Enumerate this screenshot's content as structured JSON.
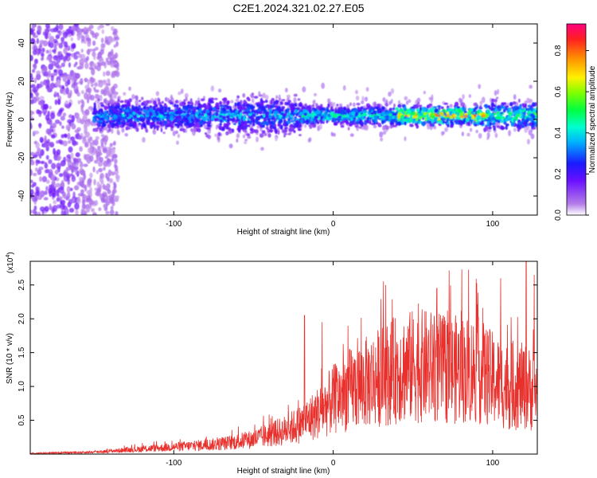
{
  "title": "C2E1.2024.321.02.27.E05",
  "colors": {
    "snr_line": "#e8302c",
    "axis": "#000000",
    "colormap": [
      "#ffffff",
      "#dcc8f5",
      "#a050f0",
      "#5a1ee6",
      "#1a1aff",
      "#00c8ff",
      "#00ffb4",
      "#32ff00",
      "#fff000",
      "#ff9600",
      "#ff0050"
    ]
  },
  "chart_data": [
    {
      "type": "heatmap",
      "title": "",
      "xlabel": "Height of straight line (km)",
      "ylabel": "Frequency (Hz)",
      "xlim": [
        -190,
        128
      ],
      "ylim": [
        -50,
        50
      ],
      "xticks": [
        -100,
        0,
        100
      ],
      "yticks": [
        -40,
        -20,
        0,
        20,
        40
      ],
      "colorbar": {
        "label": "Normalized spectral amplitude",
        "range": [
          0,
          0.93
        ],
        "ticks": [
          "0.0",
          "0.2",
          "0.4",
          "0.6",
          "0.8"
        ]
      },
      "description_band": {
        "center_freq_hz": 2,
        "noise_region_km": [
          -190,
          -135
        ],
        "band_start_km": -160,
        "band_end_km": 128
      }
    },
    {
      "type": "line",
      "title": "",
      "xlabel": "Height of straight line (km)",
      "ylabel": "SNR (10 * v/v)",
      "multiplier_label": "(x10",
      "multiplier_exp": "4",
      "xlim": [
        -190,
        128
      ],
      "ylim": [
        0,
        2.85
      ],
      "xticks": [
        -100,
        0,
        100
      ],
      "yticks": [
        "0.5",
        "1.0",
        "1.5",
        "2.0",
        "2.5"
      ],
      "series": [
        {
          "x": [
            -190,
            -170,
            -150,
            -130,
            -110,
            -90,
            -70,
            -50,
            -30,
            -20,
            -10,
            0,
            10,
            20,
            30,
            40,
            50,
            60,
            70,
            80,
            90,
            100,
            110,
            120,
            128
          ],
          "y": [
            0.01,
            0.02,
            0.03,
            0.06,
            0.09,
            0.12,
            0.15,
            0.22,
            0.35,
            0.45,
            0.6,
            0.8,
            0.95,
            1.05,
            1.15,
            1.25,
            1.3,
            1.3,
            1.25,
            1.25,
            1.25,
            1.1,
            1.0,
            1.0,
            0.9
          ],
          "peaks": [
            {
              "x": 105,
              "y": 2.6
            },
            {
              "x": 121,
              "y": 2.85
            },
            {
              "x": 126,
              "y": 2.65
            },
            {
              "x": 33,
              "y": 2.5
            },
            {
              "x": 65,
              "y": 2.45
            },
            {
              "x": -18,
              "y": 2.05
            },
            {
              "x": -7,
              "y": 1.95
            }
          ]
        }
      ]
    }
  ]
}
